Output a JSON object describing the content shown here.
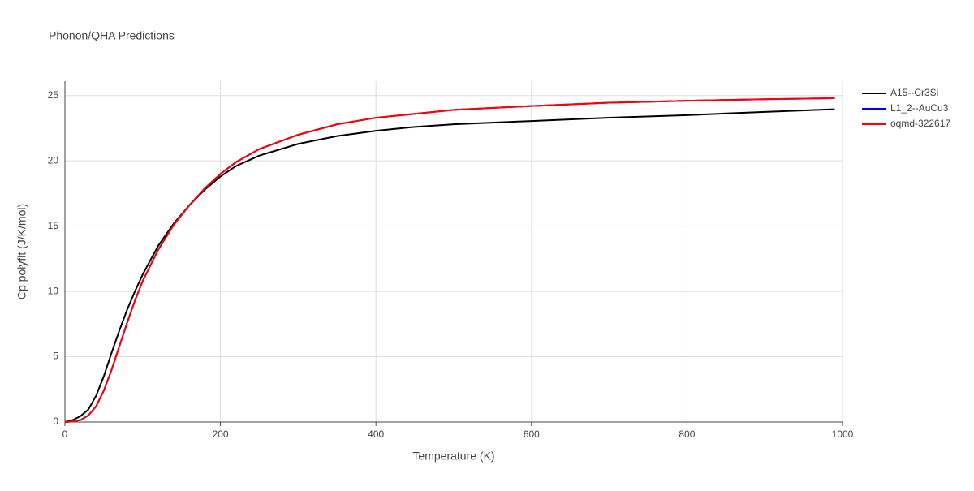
{
  "chart_data": {
    "type": "line",
    "title": "Phonon/QHA Predictions",
    "xlabel": "Temperature (K)",
    "ylabel": "Cp polyfit (J/K/mol)",
    "x": [
      0,
      10,
      20,
      30,
      40,
      50,
      60,
      70,
      80,
      90,
      100,
      120,
      140,
      160,
      180,
      200,
      220,
      250,
      300,
      350,
      400,
      450,
      500,
      600,
      700,
      800,
      900,
      990
    ],
    "series": [
      {
        "name": "A15--Cr3Si",
        "color": "#000000",
        "values": [
          0,
          0.15,
          0.45,
          0.95,
          2.0,
          3.5,
          5.3,
          7.0,
          8.6,
          10.0,
          11.3,
          13.5,
          15.2,
          16.6,
          17.8,
          18.8,
          19.6,
          20.4,
          21.3,
          21.9,
          22.3,
          22.6,
          22.8,
          23.05,
          23.3,
          23.5,
          23.75,
          23.95
        ]
      },
      {
        "name": "L1_2--AuCu3",
        "color": "#0000ff",
        "values": [
          0,
          0.05,
          0.15,
          0.5,
          1.2,
          2.4,
          4.0,
          5.8,
          7.6,
          9.3,
          10.8,
          13.2,
          15.1,
          16.6,
          17.9,
          19.0,
          19.9,
          20.9,
          22.0,
          22.8,
          23.3,
          23.6,
          23.9,
          24.2,
          24.45,
          24.6,
          24.72,
          24.8
        ]
      },
      {
        "name": "oqmd-322617",
        "color": "#ff0000",
        "values": [
          0,
          0.05,
          0.15,
          0.5,
          1.2,
          2.4,
          4.0,
          5.8,
          7.6,
          9.3,
          10.8,
          13.2,
          15.1,
          16.6,
          17.9,
          19.0,
          19.9,
          20.9,
          22.0,
          22.8,
          23.3,
          23.6,
          23.9,
          24.2,
          24.45,
          24.6,
          24.72,
          24.8
        ]
      }
    ],
    "xlim": [
      0,
      1000
    ],
    "xticks": [
      0,
      200,
      400,
      600,
      800,
      1000
    ],
    "ylim": [
      0,
      26.1
    ],
    "yticks": [
      0,
      5,
      10,
      15,
      20,
      25
    ],
    "grid": true,
    "legend": "right"
  }
}
